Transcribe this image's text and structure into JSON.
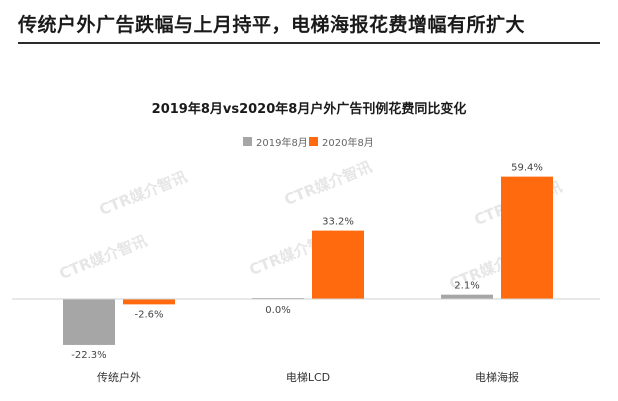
{
  "header": {
    "headline": "传统户外广告跌幅与上月持平，电梯海报花费增幅有所扩大"
  },
  "watermark": {
    "text": "CTR媒介智讯"
  },
  "colors": {
    "series_2019": "#a6a6a6",
    "series_2020": "#ff6a0e",
    "axis": "#d0d0d0",
    "watermark": "#e6e6e6"
  },
  "chart_data": {
    "type": "bar",
    "title": "2019年8月vs2020年8月户外广告刊例花费同比变化",
    "categories": [
      "传统户外",
      "电梯LCD",
      "电梯海报"
    ],
    "series": [
      {
        "name": "2019年8月",
        "values": [
          -22.3,
          0.0,
          2.1
        ],
        "labels": [
          "-22.3%",
          "0.0%",
          "2.1%"
        ]
      },
      {
        "name": "2020年8月",
        "values": [
          -2.6,
          33.2,
          59.4
        ],
        "labels": [
          "-2.6%",
          "33.2%",
          "59.4%"
        ]
      }
    ],
    "unit": "%",
    "ylim": [
      -30,
      70
    ],
    "grid": false,
    "legend_position": "top-center"
  }
}
